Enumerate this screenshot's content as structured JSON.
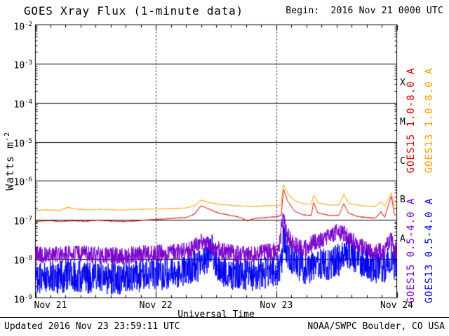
{
  "header": {
    "title": "GOES Xray Flux (1-minute data)",
    "begin_label": "Begin:  2016 Nov 21 0000 UTC"
  },
  "footer": {
    "updated": "Updated 2016 Nov 23 23:59:11 UTC",
    "source": "NOAA/SWPC Boulder, CO USA"
  },
  "chart_data": {
    "type": "line",
    "title": "GOES Xray Flux (1-minute data)",
    "xlabel": "Universal Time",
    "ylabel": "Watts m-2",
    "ylabel_prefix": "Watts m",
    "ylabel_exp": "-2",
    "y_scale": "log",
    "y_tick_base": "10",
    "y_tick_exponents": [
      -2,
      -3,
      -4,
      -5,
      -6,
      -7,
      -8,
      -9
    ],
    "ylim": [
      1e-09,
      0.01
    ],
    "x_tick_labels": [
      "Nov 21",
      "Nov 22",
      "Nov 23",
      "Nov 24"
    ],
    "x_tick_days": [
      0,
      1,
      2,
      3
    ],
    "xlim_days": [
      0,
      3
    ],
    "grid": {
      "horizontal": "solid line at each decade",
      "vertical": "dotted line at each day boundary"
    },
    "flare_class_letters": [
      "X",
      "M",
      "C",
      "B",
      "A"
    ],
    "legend_position": "right, rotated vertical",
    "axis_color": "#000000",
    "background_color": "#ffffff",
    "series": [
      {
        "name": "GOES15 1.0-8.0 A",
        "color": "#d40000",
        "noise_dex": 0.012,
        "seed": 101,
        "points": [
          [
            0.0,
            9e-08
          ],
          [
            0.1,
            9.6e-08
          ],
          [
            0.2,
            9e-08
          ],
          [
            0.3,
            9.4e-08
          ],
          [
            0.42,
            9.2e-08
          ],
          [
            0.52,
            9.8e-08
          ],
          [
            0.64,
            9.2e-08
          ],
          [
            0.75,
            9e-08
          ],
          [
            0.85,
            9.5e-08
          ],
          [
            0.95,
            1e-07
          ],
          [
            1.05,
            1.05e-07
          ],
          [
            1.15,
            1.1e-07
          ],
          [
            1.25,
            1.15e-07
          ],
          [
            1.32,
            1.4e-07
          ],
          [
            1.375,
            2.3e-07
          ],
          [
            1.44,
            1.9e-07
          ],
          [
            1.52,
            1.5e-07
          ],
          [
            1.62,
            1.3e-07
          ],
          [
            1.7,
            1.15e-07
          ],
          [
            1.76,
            9.5e-08
          ],
          [
            1.83,
            1.1e-07
          ],
          [
            1.92,
            1.15e-07
          ],
          [
            2.0,
            1.2e-07
          ],
          [
            2.04,
            1.3e-07
          ],
          [
            2.06,
            6e-07
          ],
          [
            2.095,
            3e-07
          ],
          [
            2.15,
            1.7e-07
          ],
          [
            2.22,
            1.35e-07
          ],
          [
            2.29,
            1.3e-07
          ],
          [
            2.31,
            2.8e-07
          ],
          [
            2.345,
            1.5e-07
          ],
          [
            2.44,
            1.3e-07
          ],
          [
            2.52,
            1.3e-07
          ],
          [
            2.56,
            2.6e-07
          ],
          [
            2.6,
            1.5e-07
          ],
          [
            2.68,
            1.2e-07
          ],
          [
            2.76,
            1.15e-07
          ],
          [
            2.82,
            1.1e-07
          ],
          [
            2.87,
            1.6e-07
          ],
          [
            2.9,
            1.15e-07
          ],
          [
            2.955,
            4.2e-07
          ],
          [
            2.98,
            1.4e-07
          ],
          [
            3.0,
            1.3e-07
          ]
        ]
      },
      {
        "name": "GOES13 1.0-8.0 A",
        "color": "#ffa000",
        "noise_dex": 0.012,
        "seed": 202,
        "points": [
          [
            0.0,
            1.75e-07
          ],
          [
            0.1,
            1.8e-07
          ],
          [
            0.2,
            1.75e-07
          ],
          [
            0.27,
            2.1e-07
          ],
          [
            0.34,
            1.9e-07
          ],
          [
            0.44,
            1.8e-07
          ],
          [
            0.54,
            1.85e-07
          ],
          [
            0.64,
            1.8e-07
          ],
          [
            0.75,
            1.8e-07
          ],
          [
            0.85,
            1.85e-07
          ],
          [
            0.95,
            1.9e-07
          ],
          [
            1.05,
            1.9e-07
          ],
          [
            1.15,
            1.95e-07
          ],
          [
            1.25,
            2e-07
          ],
          [
            1.32,
            2.3e-07
          ],
          [
            1.375,
            3.2e-07
          ],
          [
            1.44,
            2.8e-07
          ],
          [
            1.52,
            2.5e-07
          ],
          [
            1.62,
            2.35e-07
          ],
          [
            1.72,
            2.25e-07
          ],
          [
            1.82,
            2.2e-07
          ],
          [
            1.92,
            2.3e-07
          ],
          [
            2.0,
            2.3e-07
          ],
          [
            2.04,
            2.4e-07
          ],
          [
            2.06,
            8e-07
          ],
          [
            2.1,
            4.5e-07
          ],
          [
            2.15,
            3.1e-07
          ],
          [
            2.22,
            2.6e-07
          ],
          [
            2.29,
            2.5e-07
          ],
          [
            2.31,
            4.3e-07
          ],
          [
            2.35,
            2.7e-07
          ],
          [
            2.44,
            2.4e-07
          ],
          [
            2.52,
            2.4e-07
          ],
          [
            2.56,
            4.6e-07
          ],
          [
            2.6,
            2.7e-07
          ],
          [
            2.68,
            2.35e-07
          ],
          [
            2.76,
            2.25e-07
          ],
          [
            2.82,
            2.2e-07
          ],
          [
            2.87,
            2.9e-07
          ],
          [
            2.9,
            2.25e-07
          ],
          [
            2.955,
            5e-07
          ],
          [
            2.98,
            2.4e-07
          ],
          [
            3.0,
            2.3e-07
          ]
        ]
      },
      {
        "name": "GOES15 0.5-4.0 A",
        "color": "#7a00cc",
        "noise_dex": 0.22,
        "seed": 303,
        "points": [
          [
            0.0,
            1.3e-08
          ],
          [
            0.15,
            1.2e-08
          ],
          [
            0.3,
            1.4e-08
          ],
          [
            0.45,
            1.3e-08
          ],
          [
            0.6,
            1.2e-08
          ],
          [
            0.75,
            1.2e-08
          ],
          [
            0.9,
            1.4e-08
          ],
          [
            1.05,
            1.4e-08
          ],
          [
            1.2,
            1.5e-08
          ],
          [
            1.3,
            1.8e-08
          ],
          [
            1.38,
            2.8e-08
          ],
          [
            1.48,
            1.9e-08
          ],
          [
            1.58,
            1.5e-08
          ],
          [
            1.7,
            1.3e-08
          ],
          [
            1.8,
            1.3e-08
          ],
          [
            1.92,
            1.5e-08
          ],
          [
            2.02,
            1.6e-08
          ],
          [
            2.055,
            1.1e-07
          ],
          [
            2.09,
            4e-08
          ],
          [
            2.15,
            2.2e-08
          ],
          [
            2.24,
            1.8e-08
          ],
          [
            2.32,
            2.8e-08
          ],
          [
            2.4,
            3.2e-08
          ],
          [
            2.5,
            5e-08
          ],
          [
            2.58,
            4.2e-08
          ],
          [
            2.66,
            2.6e-08
          ],
          [
            2.74,
            1.8e-08
          ],
          [
            2.82,
            1.5e-08
          ],
          [
            2.9,
            1.6e-08
          ],
          [
            2.955,
            3.5e-08
          ],
          [
            2.98,
            1.8e-08
          ],
          [
            3.0,
            1.6e-08
          ]
        ]
      },
      {
        "name": "GOES13 0.5-4.0 A",
        "color": "#0000ee",
        "noise_dex": 0.42,
        "seed": 404,
        "points": [
          [
            0.0,
            3.5e-09
          ],
          [
            0.15,
            3.2e-09
          ],
          [
            0.3,
            3.8e-09
          ],
          [
            0.45,
            3.4e-09
          ],
          [
            0.6,
            3.2e-09
          ],
          [
            0.75,
            3.2e-09
          ],
          [
            0.9,
            3.8e-09
          ],
          [
            1.05,
            4.2e-09
          ],
          [
            1.2,
            4.6e-09
          ],
          [
            1.3,
            6e-09
          ],
          [
            1.4,
            7.5e-09
          ],
          [
            1.465,
            1.8e-08
          ],
          [
            1.5,
            6e-09
          ],
          [
            1.62,
            4.2e-09
          ],
          [
            1.74,
            3.6e-09
          ],
          [
            1.86,
            4.2e-09
          ],
          [
            1.98,
            4.8e-09
          ],
          [
            2.04,
            5.5e-09
          ],
          [
            2.06,
            4e-08
          ],
          [
            2.1,
            1.2e-08
          ],
          [
            2.18,
            6.5e-09
          ],
          [
            2.26,
            5.5e-09
          ],
          [
            2.32,
            8e-09
          ],
          [
            2.42,
            7e-09
          ],
          [
            2.52,
            9.5e-09
          ],
          [
            2.58,
            1.5e-08
          ],
          [
            2.64,
            1.2e-08
          ],
          [
            2.72,
            8.5e-09
          ],
          [
            2.82,
            5.5e-09
          ],
          [
            2.9,
            6.5e-09
          ],
          [
            2.955,
            1e-08
          ],
          [
            3.0,
            5.5e-09
          ]
        ]
      }
    ]
  }
}
